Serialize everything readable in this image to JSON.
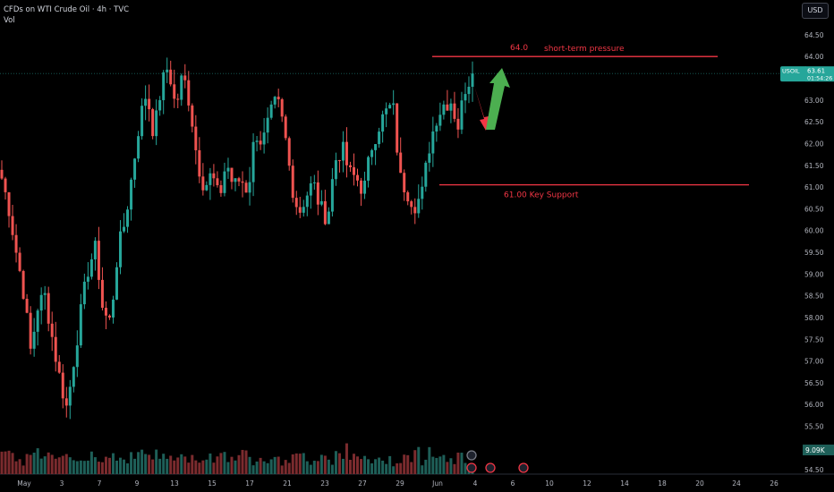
{
  "header": {
    "title": "CFDs on WTI Crude Oil · 4h · TVC",
    "volume_label": "Vol",
    "currency": "USD"
  },
  "colors": {
    "up": "#26a69a",
    "down": "#ef5350",
    "vol_up": "#1e5f58",
    "vol_down": "#7b2b2e",
    "annotation": "#f23645",
    "arrow_up": "#4caf50",
    "arrow_down": "#f23645",
    "price_badge": "#26a69a"
  },
  "price_badge": {
    "symbol": "USOIL",
    "price": "63.61",
    "countdown": "01:54:26"
  },
  "volume_badge": "9.09K",
  "annotations": [
    {
      "label_value": "64.0",
      "label_text": "short-term pressure",
      "price": 64.0
    },
    {
      "label_text": "61.00 Key Support",
      "price": 61.05
    }
  ],
  "chart_data": {
    "type": "candlestick",
    "y_range": [
      54.4,
      65.3
    ],
    "y_ticks": [
      "65.00",
      "64.50",
      "64.00",
      "63.50",
      "63.00",
      "62.50",
      "62.00",
      "61.50",
      "61.00",
      "60.50",
      "60.00",
      "59.50",
      "59.00",
      "58.50",
      "58.00",
      "57.50",
      "57.00",
      "56.50",
      "56.00",
      "55.50",
      "55.00",
      "54.50"
    ],
    "x_ticks": [
      "May",
      "3",
      "5",
      "7",
      "9",
      "13",
      "15",
      "17",
      "21",
      "23",
      "27",
      "29",
      "Jun",
      "4",
      "6",
      "10",
      "12",
      "14",
      "18",
      "20",
      "24",
      "26"
    ],
    "anchors": [
      61.2,
      60.5,
      59.5,
      58.6,
      57.2,
      58.3,
      58.5,
      57.5,
      56.6,
      55.9,
      57.1,
      58.2,
      59.2,
      59.6,
      58.1,
      57.9,
      59.5,
      60.2,
      61.3,
      62.5,
      63.2,
      62.2,
      63.3,
      63.8,
      62.8,
      63.6,
      62.9,
      61.6,
      61.0,
      61.3,
      60.7,
      61.6,
      61.0,
      61.2,
      60.9,
      62.3,
      62.0,
      62.6,
      63.0,
      62.3,
      61.1,
      60.4,
      60.8,
      61.1,
      60.5,
      60.3,
      61.6,
      61.9,
      61.3,
      61.2,
      60.9,
      61.9,
      62.4,
      62.7,
      62.9,
      61.2,
      60.9,
      60.6,
      60.8,
      61.9,
      62.6,
      62.9,
      63.0,
      62.4,
      63.3,
      63.61
    ],
    "volume_anchors": [
      3400,
      2200,
      1600,
      2600,
      3200,
      1900,
      2600,
      1700,
      2800,
      2000,
      2500,
      3000,
      2800,
      1900,
      2300,
      2900,
      2200,
      2400,
      2600,
      3100,
      2900,
      2500,
      2600,
      2200,
      2200,
      2400,
      2000,
      2400,
      2300,
      2500,
      2900,
      2500,
      2800,
      2600,
      2000,
      2700,
      2500,
      2400,
      1800,
      2300,
      2200,
      2400,
      1900,
      2400,
      2800,
      2100,
      3100,
      3200,
      2200,
      2000,
      2300,
      1900,
      1700,
      2100,
      1800,
      2500,
      2700,
      2900,
      2000,
      3100,
      2700,
      2000,
      1600,
      2400,
      1300,
      600
    ],
    "volume_max": 10000
  }
}
